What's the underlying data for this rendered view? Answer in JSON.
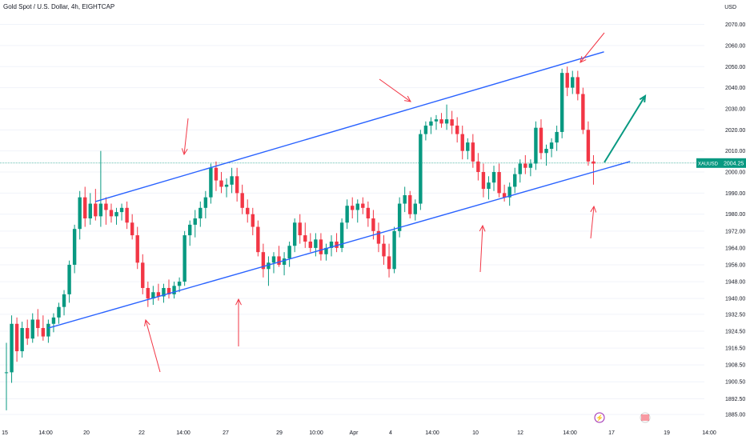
{
  "header": {
    "title": "Gold Spot / U.S. Dollar, 4h, EIGHTCAP",
    "currency": "USD"
  },
  "chart_data": {
    "type": "candlestick",
    "title": "Gold Spot / U.S. Dollar, 4h, EIGHTCAP",
    "symbol": "XAUUSD",
    "last_price": "2004.25",
    "price_unit": "USD",
    "y_ticks": [
      "2070.00",
      "2060.00",
      "2050.00",
      "2040.00",
      "2030.00",
      "2020.00",
      "2010.00",
      "2000.00",
      "1990.00",
      "1980.00",
      "1972.00",
      "1964.00",
      "1956.00",
      "1948.00",
      "1940.00",
      "1932.50",
      "1924.50",
      "1916.50",
      "1908.50",
      "1900.50",
      "1892.50",
      "1885.00"
    ],
    "x_ticks": [
      "15",
      "14:00",
      "20",
      "22",
      "14:00",
      "27",
      "29",
      "10:00",
      "Apr",
      "4",
      "14:00",
      "10",
      "12",
      "14:00",
      "17",
      "19",
      "14:00"
    ],
    "ylim": [
      1882,
      2074
    ],
    "grid": true,
    "candles": [
      [
        1905,
        1919,
        1887,
        1905
      ],
      [
        1905,
        1932,
        1900,
        1928
      ],
      [
        1928,
        1931,
        1910,
        1915
      ],
      [
        1915,
        1929,
        1912,
        1926
      ],
      [
        1926,
        1930,
        1918,
        1921
      ],
      [
        1921,
        1933,
        1919,
        1930
      ],
      [
        1930,
        1935,
        1922,
        1926
      ],
      [
        1926,
        1932,
        1920,
        1922
      ],
      [
        1922,
        1930,
        1919,
        1928
      ],
      [
        1928,
        1933,
        1924,
        1931
      ],
      [
        1931,
        1938,
        1928,
        1936
      ],
      [
        1936,
        1944,
        1932,
        1942
      ],
      [
        1942,
        1958,
        1938,
        1956
      ],
      [
        1956,
        1975,
        1952,
        1973
      ],
      [
        1973,
        1991,
        1968,
        1988
      ],
      [
        1988,
        1993,
        1974,
        1978
      ],
      [
        1978,
        1990,
        1975,
        1985
      ],
      [
        1985,
        1992,
        1977,
        1979
      ],
      [
        1979,
        2010,
        1974,
        1985
      ],
      [
        1985,
        1988,
        1975,
        1982
      ],
      [
        1982,
        1985,
        1976,
        1979
      ],
      [
        1979,
        1983,
        1975,
        1981
      ],
      [
        1981,
        1985,
        1977,
        1983
      ],
      [
        1983,
        1986,
        1973,
        1976
      ],
      [
        1976,
        1980,
        1968,
        1970
      ],
      [
        1970,
        1974,
        1954,
        1957
      ],
      [
        1957,
        1961,
        1942,
        1945
      ],
      [
        1945,
        1948,
        1936,
        1940
      ],
      [
        1940,
        1946,
        1937,
        1943
      ],
      [
        1943,
        1947,
        1939,
        1941
      ],
      [
        1941,
        1947,
        1938,
        1945
      ],
      [
        1945,
        1949,
        1940,
        1942
      ],
      [
        1942,
        1948,
        1940,
        1946
      ],
      [
        1946,
        1950,
        1943,
        1948
      ],
      [
        1948,
        1972,
        1946,
        1970
      ],
      [
        1970,
        1977,
        1965,
        1975
      ],
      [
        1975,
        1982,
        1969,
        1978
      ],
      [
        1978,
        1986,
        1974,
        1983
      ],
      [
        1983,
        1991,
        1978,
        1988
      ],
      [
        1988,
        2004,
        1985,
        2002
      ],
      [
        2002,
        2005,
        1991,
        1996
      ],
      [
        1996,
        2000,
        1990,
        1993
      ],
      [
        1993,
        1997,
        1988,
        1994
      ],
      [
        1994,
        2002,
        1990,
        1998
      ],
      [
        1998,
        2002,
        1986,
        1990
      ],
      [
        1990,
        1994,
        1980,
        1983
      ],
      [
        1983,
        1987,
        1976,
        1980
      ],
      [
        1980,
        1983,
        1970,
        1974
      ],
      [
        1974,
        1977,
        1960,
        1962
      ],
      [
        1962,
        1966,
        1950,
        1954
      ],
      [
        1954,
        1960,
        1946,
        1957
      ],
      [
        1957,
        1962,
        1952,
        1960
      ],
      [
        1960,
        1965,
        1955,
        1956
      ],
      [
        1956,
        1962,
        1951,
        1959
      ],
      [
        1959,
        1967,
        1955,
        1965
      ],
      [
        1965,
        1978,
        1962,
        1976
      ],
      [
        1976,
        1980,
        1966,
        1970
      ],
      [
        1970,
        1976,
        1964,
        1967
      ],
      [
        1967,
        1971,
        1962,
        1964
      ],
      [
        1964,
        1971,
        1960,
        1968
      ],
      [
        1968,
        1971,
        1958,
        1961
      ],
      [
        1961,
        1966,
        1958,
        1964
      ],
      [
        1964,
        1970,
        1960,
        1967
      ],
      [
        1967,
        1971,
        1962,
        1964
      ],
      [
        1964,
        1978,
        1962,
        1976
      ],
      [
        1976,
        1987,
        1973,
        1984
      ],
      [
        1984,
        1988,
        1978,
        1982
      ],
      [
        1982,
        1987,
        1976,
        1985
      ],
      [
        1985,
        1988,
        1980,
        1983
      ],
      [
        1983,
        1986,
        1974,
        1978
      ],
      [
        1978,
        1982,
        1968,
        1972
      ],
      [
        1972,
        1976,
        1962,
        1966
      ],
      [
        1966,
        1970,
        1956,
        1960
      ],
      [
        1960,
        1966,
        1950,
        1954
      ],
      [
        1954,
        1974,
        1952,
        1972
      ],
      [
        1972,
        1988,
        1969,
        1985
      ],
      [
        1985,
        1993,
        1981,
        1989
      ],
      [
        1989,
        1991,
        1978,
        1980
      ],
      [
        1980,
        1987,
        1977,
        1985
      ],
      [
        1985,
        2020,
        1982,
        2018
      ],
      [
        2018,
        2024,
        2015,
        2022
      ],
      [
        2022,
        2026,
        2018,
        2024
      ],
      [
        2024,
        2027,
        2020,
        2025
      ],
      [
        2025,
        2028,
        2021,
        2023
      ],
      [
        2023,
        2032,
        2020,
        2025
      ],
      [
        2025,
        2029,
        2018,
        2022
      ],
      [
        2022,
        2026,
        2014,
        2018
      ],
      [
        2018,
        2022,
        2006,
        2010
      ],
      [
        2010,
        2016,
        2006,
        2014
      ],
      [
        2014,
        2018,
        2002,
        2005
      ],
      [
        2005,
        2009,
        1996,
        2000
      ],
      [
        2000,
        2004,
        1988,
        1992
      ],
      [
        1992,
        1998,
        1987,
        1995
      ],
      [
        1995,
        2003,
        1991,
        2000
      ],
      [
        2000,
        2004,
        1988,
        1990
      ],
      [
        1990,
        1994,
        1986,
        1988
      ],
      [
        1988,
        1995,
        1984,
        1993
      ],
      [
        1993,
        2002,
        1990,
        1999
      ],
      [
        1999,
        2006,
        1995,
        2004
      ],
      [
        2004,
        2008,
        1999,
        2002
      ],
      [
        2002,
        2006,
        1998,
        2004
      ],
      [
        2004,
        2024,
        2001,
        2021
      ],
      [
        2021,
        2025,
        2006,
        2009
      ],
      [
        2009,
        2013,
        2003,
        2011
      ],
      [
        2011,
        2016,
        2007,
        2014
      ],
      [
        2014,
        2022,
        2010,
        2019
      ],
      [
        2019,
        2049,
        2016,
        2047
      ],
      [
        2047,
        2050,
        2036,
        2040
      ],
      [
        2040,
        2048,
        2037,
        2045
      ],
      [
        2045,
        2048,
        2034,
        2037
      ],
      [
        2037,
        2040,
        2018,
        2020
      ],
      [
        2020,
        2024,
        2003,
        2005
      ],
      [
        2005,
        2008,
        1994,
        2004
      ]
    ],
    "channel_lines": [
      {
        "name": "upper",
        "points": [
          [
            17,
            1986
          ],
          [
            114,
            2057
          ]
        ]
      },
      {
        "name": "lower",
        "points": [
          [
            8,
            1926
          ],
          [
            119,
            2005
          ]
        ]
      }
    ]
  },
  "annotations": {
    "up_color": "#089981",
    "down_color": "#f23645",
    "line_color": "#2962ff",
    "arrow_color": "#f23645",
    "target_arrow_color": "#089981"
  },
  "price_label": {
    "symbol": "XAUUSD",
    "value": "2004.25",
    "color": "#089981"
  },
  "event_icons": [
    {
      "name": "lightning-icon",
      "color": "#9c27b0"
    },
    {
      "name": "us-flag-icon"
    }
  ]
}
